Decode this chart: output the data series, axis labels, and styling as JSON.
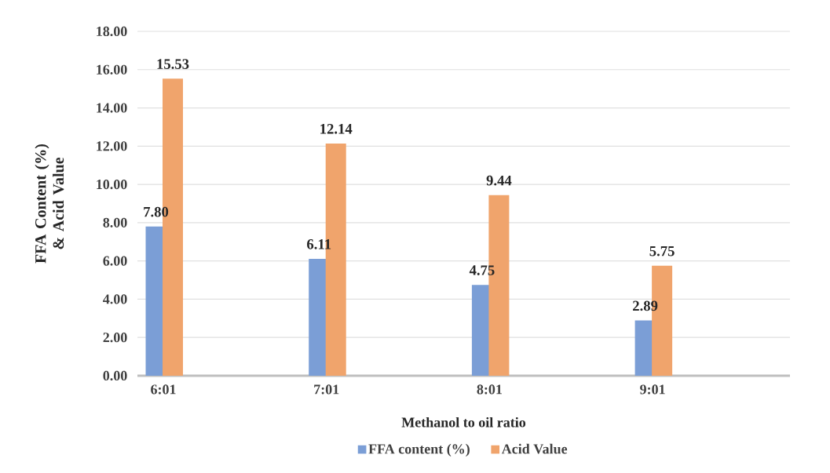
{
  "chart_data": {
    "type": "bar",
    "xlabel": "Methanol to oil ratio",
    "ylabel": "FFA Content (%) & Acid Value",
    "categories": [
      "6:01",
      "7:01",
      "8:01",
      "9:01"
    ],
    "series": [
      {
        "name": "FFA content (%)",
        "color": "#7b9ed6",
        "values": [
          7.8,
          6.11,
          4.75,
          2.89
        ],
        "value_labels": [
          "7.80",
          "6.11",
          "4.75",
          "2.89"
        ]
      },
      {
        "name": "Acid Value",
        "color": "#f0a46c",
        "values": [
          15.53,
          12.14,
          9.44,
          5.75
        ],
        "value_labels": [
          "15.53",
          "12.14",
          "9.44",
          "5.75"
        ]
      }
    ],
    "ylim": [
      0,
      18
    ],
    "yticks": [
      {
        "value": 0,
        "label": "0.00"
      },
      {
        "value": 2,
        "label": "2.00"
      },
      {
        "value": 4,
        "label": "4.00"
      },
      {
        "value": 6,
        "label": "6.00"
      },
      {
        "value": 8,
        "label": "8.00"
      },
      {
        "value": 10,
        "label": "10.00"
      },
      {
        "value": 12,
        "label": "12.00"
      },
      {
        "value": 14,
        "label": "14.00"
      },
      {
        "value": 16,
        "label": "16.00"
      },
      {
        "value": 18,
        "label": "18.00"
      }
    ],
    "grid": "y",
    "legend": "bottom"
  }
}
